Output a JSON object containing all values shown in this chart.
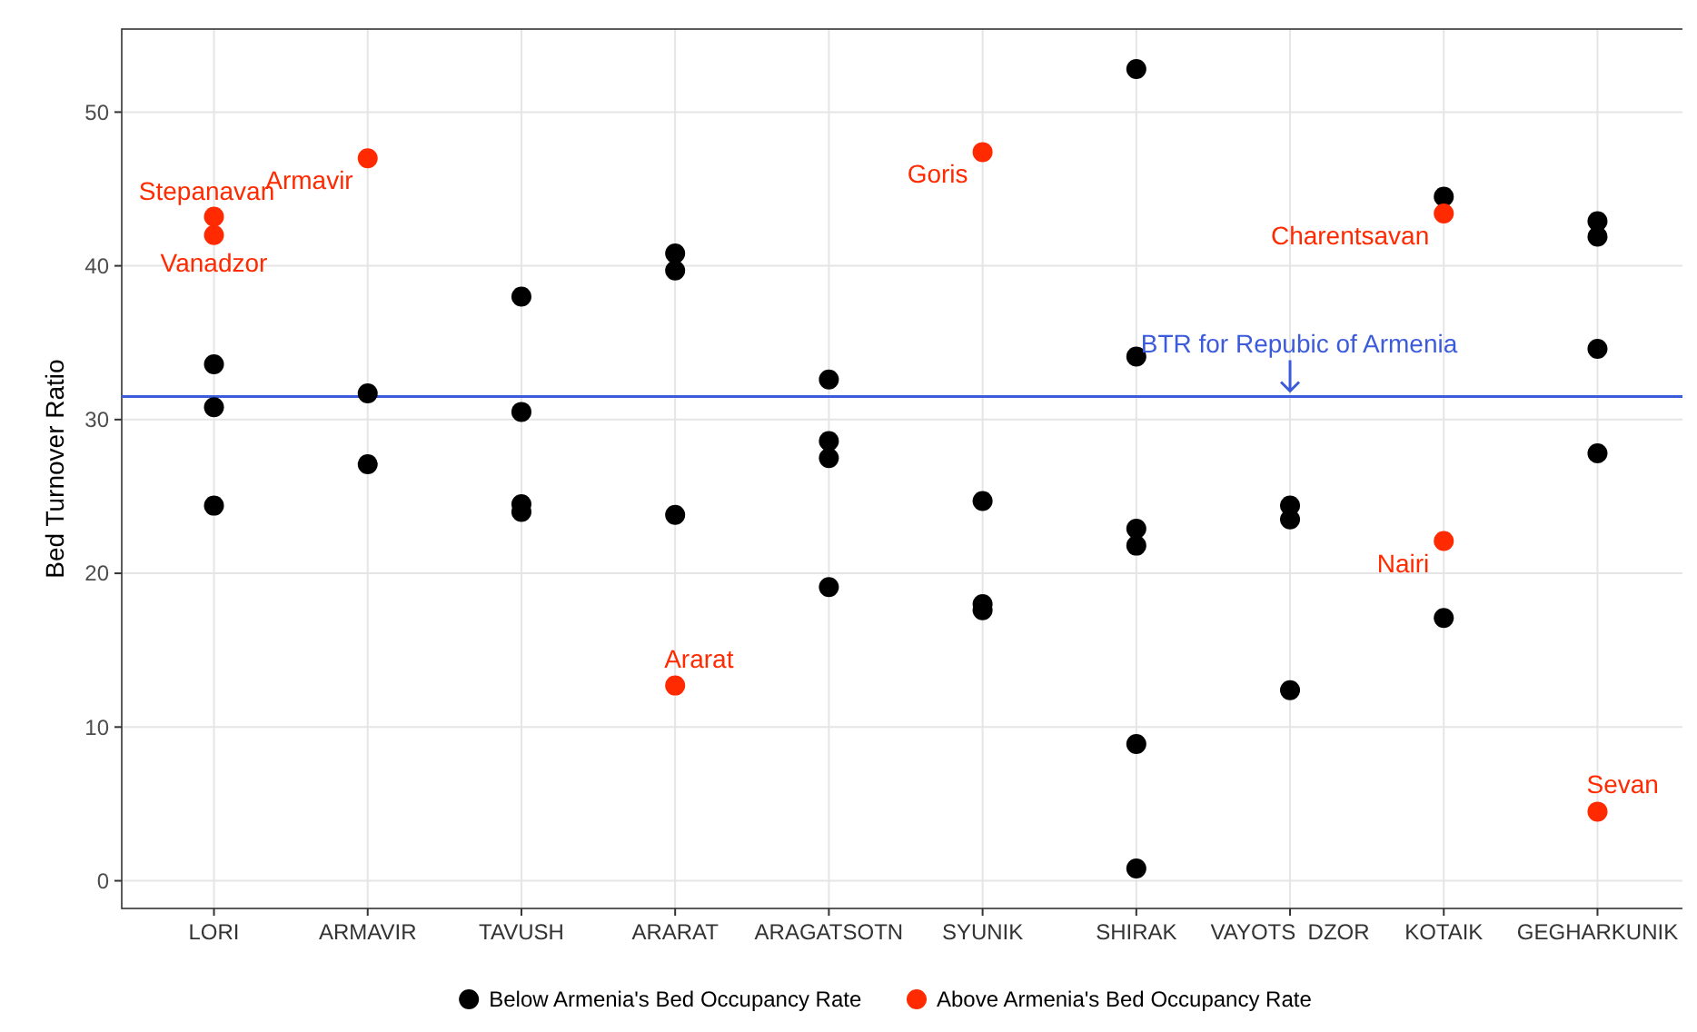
{
  "chart_data": {
    "type": "scatter",
    "ylabel": "Bed Turnover Ratio",
    "categories": [
      "LORI",
      "ARMAVIR",
      "TAVUSH",
      "ARARAT",
      "ARAGATSOTN",
      "SYUNIK",
      "SHIRAK",
      "VAYOTS  DZOR",
      "KOTAIK",
      "GEGHARKUNIK"
    ],
    "series": [
      {
        "name": "Below Armenia's Bed Occupancy Rate",
        "color": "#000000",
        "x": [
          "LORI",
          "LORI",
          "LORI",
          "ARMAVIR",
          "ARMAVIR",
          "TAVUSH",
          "TAVUSH",
          "TAVUSH",
          "TAVUSH",
          "ARARAT",
          "ARARAT",
          "ARARAT",
          "ARAGATSOTN",
          "ARAGATSOTN",
          "ARAGATSOTN",
          "ARAGATSOTN",
          "SYUNIK",
          "SYUNIK",
          "SYUNIK",
          "SHIRAK",
          "SHIRAK",
          "SHIRAK",
          "SHIRAK",
          "SHIRAK",
          "SHIRAK",
          "VAYOTS  DZOR",
          "VAYOTS  DZOR",
          "VAYOTS  DZOR",
          "KOTAIK",
          "KOTAIK",
          "GEGHARKUNIK",
          "GEGHARKUNIK",
          "GEGHARKUNIK",
          "GEGHARKUNIK"
        ],
        "values": [
          33.6,
          30.8,
          24.4,
          31.7,
          27.1,
          38.0,
          30.5,
          24.5,
          24.0,
          40.8,
          39.7,
          23.8,
          32.6,
          28.6,
          27.5,
          19.1,
          24.7,
          18.0,
          17.6,
          52.8,
          34.1,
          22.9,
          21.8,
          8.9,
          0.8,
          24.4,
          23.5,
          12.4,
          44.5,
          17.1,
          42.9,
          41.9,
          34.6,
          27.8
        ]
      },
      {
        "name": "Above Armenia's Bed Occupancy Rate",
        "color": "#ff2a00",
        "x": [
          "LORI",
          "LORI",
          "ARMAVIR",
          "ARARAT",
          "SYUNIK",
          "KOTAIK",
          "KOTAIK",
          "GEGHARKUNIK"
        ],
        "values": [
          43.2,
          42.0,
          47.0,
          12.7,
          47.4,
          43.4,
          22.1,
          4.5
        ]
      }
    ],
    "annotations": [
      {
        "text": "Stepanavan",
        "x": "LORI",
        "y": 43.2
      },
      {
        "text": "Vanadzor",
        "x": "LORI",
        "y": 42.0
      },
      {
        "text": "Armavir",
        "x": "ARMAVIR",
        "y": 47.0
      },
      {
        "text": "Ararat",
        "x": "ARARAT",
        "y": 12.7
      },
      {
        "text": "Goris",
        "x": "SYUNIK",
        "y": 47.4
      },
      {
        "text": "Charentsavan",
        "x": "KOTAIK",
        "y": 43.4
      },
      {
        "text": "Nairi",
        "x": "KOTAIK",
        "y": 22.1
      },
      {
        "text": "Sevan",
        "x": "GEGHARKUNIK",
        "y": 4.5
      },
      {
        "text": "BTR for Repubic of Armenia",
        "x": "VAYOTS  DZOR",
        "y": 31.5
      }
    ],
    "ref_lines": [
      {
        "axis": "y",
        "value": 31.5,
        "color": "#3b5bdb"
      }
    ],
    "ylim": [
      -1.8,
      55.4
    ],
    "yticks": [
      0,
      10,
      20,
      30,
      40,
      50
    ],
    "grid": true,
    "legend": "bottom",
    "marker": "circle"
  }
}
